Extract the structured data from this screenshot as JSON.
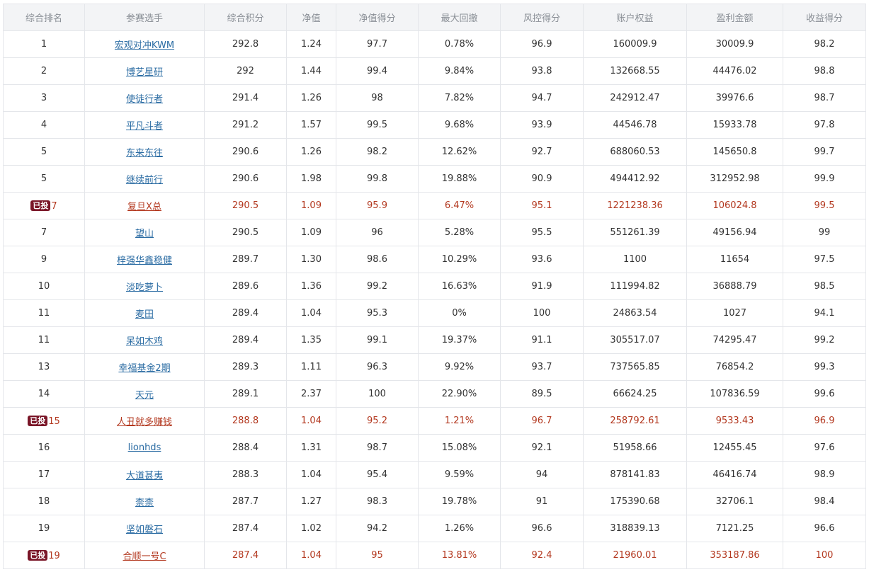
{
  "table": {
    "headers": [
      "综合排名",
      "参赛选手",
      "综合积分",
      "净值",
      "净值得分",
      "最大回撤",
      "风控得分",
      "账户权益",
      "盈利金额",
      "收益得分"
    ],
    "badge_label": "已投",
    "rows": [
      {
        "rank": "1",
        "badge": "",
        "player": "宏观对冲KWM",
        "score": "292.8",
        "nav": "1.24",
        "nav_score": "97.7",
        "max_drawdown": "0.78%",
        "risk_score": "96.9",
        "equity": "160009.9",
        "profit": "30009.9",
        "return_score": "98.2"
      },
      {
        "rank": "2",
        "badge": "",
        "player": "博艺星研",
        "score": "292",
        "nav": "1.44",
        "nav_score": "99.4",
        "max_drawdown": "9.84%",
        "risk_score": "93.8",
        "equity": "132668.55",
        "profit": "44476.02",
        "return_score": "98.8"
      },
      {
        "rank": "3",
        "badge": "",
        "player": "使徒行者",
        "score": "291.4",
        "nav": "1.26",
        "nav_score": "98",
        "max_drawdown": "7.82%",
        "risk_score": "94.7",
        "equity": "242912.47",
        "profit": "39976.6",
        "return_score": "98.7"
      },
      {
        "rank": "4",
        "badge": "",
        "player": "平凡斗者",
        "score": "291.2",
        "nav": "1.57",
        "nav_score": "99.5",
        "max_drawdown": "9.68%",
        "risk_score": "93.9",
        "equity": "44546.78",
        "profit": "15933.78",
        "return_score": "97.8"
      },
      {
        "rank": "5",
        "badge": "",
        "player": "东来东往",
        "score": "290.6",
        "nav": "1.26",
        "nav_score": "98.2",
        "max_drawdown": "12.62%",
        "risk_score": "92.7",
        "equity": "688060.53",
        "profit": "145650.8",
        "return_score": "99.7"
      },
      {
        "rank": "5",
        "badge": "",
        "player": "继续前行",
        "score": "290.6",
        "nav": "1.98",
        "nav_score": "99.8",
        "max_drawdown": "19.88%",
        "risk_score": "90.9",
        "equity": "494412.92",
        "profit": "312952.98",
        "return_score": "99.9"
      },
      {
        "rank": "7",
        "badge": "已投",
        "player": "复旦X总",
        "score": "290.5",
        "nav": "1.09",
        "nav_score": "95.9",
        "max_drawdown": "6.47%",
        "risk_score": "95.1",
        "equity": "1221238.36",
        "profit": "106024.8",
        "return_score": "99.5"
      },
      {
        "rank": "7",
        "badge": "",
        "player": "望山",
        "score": "290.5",
        "nav": "1.09",
        "nav_score": "96",
        "max_drawdown": "5.28%",
        "risk_score": "95.5",
        "equity": "551261.39",
        "profit": "49156.94",
        "return_score": "99"
      },
      {
        "rank": "9",
        "badge": "",
        "player": "梓强华鑫稳健",
        "score": "289.7",
        "nav": "1.30",
        "nav_score": "98.6",
        "max_drawdown": "10.29%",
        "risk_score": "93.6",
        "equity": "1100",
        "profit": "11654",
        "return_score": "97.5"
      },
      {
        "rank": "10",
        "badge": "",
        "player": "淡吃萝卜",
        "score": "289.6",
        "nav": "1.36",
        "nav_score": "99.2",
        "max_drawdown": "16.63%",
        "risk_score": "91.9",
        "equity": "111994.82",
        "profit": "36888.79",
        "return_score": "98.5"
      },
      {
        "rank": "11",
        "badge": "",
        "player": "麦田",
        "score": "289.4",
        "nav": "1.04",
        "nav_score": "95.3",
        "max_drawdown": "0%",
        "risk_score": "100",
        "equity": "24863.54",
        "profit": "1027",
        "return_score": "94.1"
      },
      {
        "rank": "11",
        "badge": "",
        "player": "呆如木鸡",
        "score": "289.4",
        "nav": "1.35",
        "nav_score": "99.1",
        "max_drawdown": "19.37%",
        "risk_score": "91.1",
        "equity": "305517.07",
        "profit": "74295.47",
        "return_score": "99.2"
      },
      {
        "rank": "13",
        "badge": "",
        "player": "幸福基金2期",
        "score": "289.3",
        "nav": "1.11",
        "nav_score": "96.3",
        "max_drawdown": "9.92%",
        "risk_score": "93.7",
        "equity": "737565.85",
        "profit": "76854.2",
        "return_score": "99.3"
      },
      {
        "rank": "14",
        "badge": "",
        "player": "天元",
        "score": "289.1",
        "nav": "2.37",
        "nav_score": "100",
        "max_drawdown": "22.90%",
        "risk_score": "89.5",
        "equity": "66624.25",
        "profit": "107836.59",
        "return_score": "99.6"
      },
      {
        "rank": "15",
        "badge": "已投",
        "player": "人丑就多赚钱",
        "score": "288.8",
        "nav": "1.04",
        "nav_score": "95.2",
        "max_drawdown": "1.21%",
        "risk_score": "96.7",
        "equity": "258792.61",
        "profit": "9533.43",
        "return_score": "96.9"
      },
      {
        "rank": "16",
        "badge": "",
        "player": "lionhds",
        "score": "288.4",
        "nav": "1.31",
        "nav_score": "98.7",
        "max_drawdown": "15.08%",
        "risk_score": "92.1",
        "equity": "51958.66",
        "profit": "12455.45",
        "return_score": "97.6"
      },
      {
        "rank": "17",
        "badge": "",
        "player": "大道甚夷",
        "score": "288.3",
        "nav": "1.04",
        "nav_score": "95.4",
        "max_drawdown": "9.59%",
        "risk_score": "94",
        "equity": "878141.83",
        "profit": "46416.74",
        "return_score": "98.9"
      },
      {
        "rank": "18",
        "badge": "",
        "player": "柰柰",
        "score": "287.7",
        "nav": "1.27",
        "nav_score": "98.3",
        "max_drawdown": "19.78%",
        "risk_score": "91",
        "equity": "175390.68",
        "profit": "32706.1",
        "return_score": "98.4"
      },
      {
        "rank": "19",
        "badge": "",
        "player": "坚如磐石",
        "score": "287.4",
        "nav": "1.02",
        "nav_score": "94.2",
        "max_drawdown": "1.26%",
        "risk_score": "96.6",
        "equity": "318839.13",
        "profit": "7121.25",
        "return_score": "96.6"
      },
      {
        "rank": "19",
        "badge": "已投",
        "player": "合顺一号C",
        "score": "287.4",
        "nav": "1.04",
        "nav_score": "95",
        "max_drawdown": "13.81%",
        "risk_score": "92.4",
        "equity": "21960.01",
        "profit": "353187.86",
        "return_score": "100"
      }
    ]
  },
  "colors": {
    "header_bg": "#f3f4f6",
    "border": "#e4e6ea",
    "link": "#2b6ca3",
    "highlight_text": "#b3381f",
    "badge_bg": "#7a1628"
  }
}
